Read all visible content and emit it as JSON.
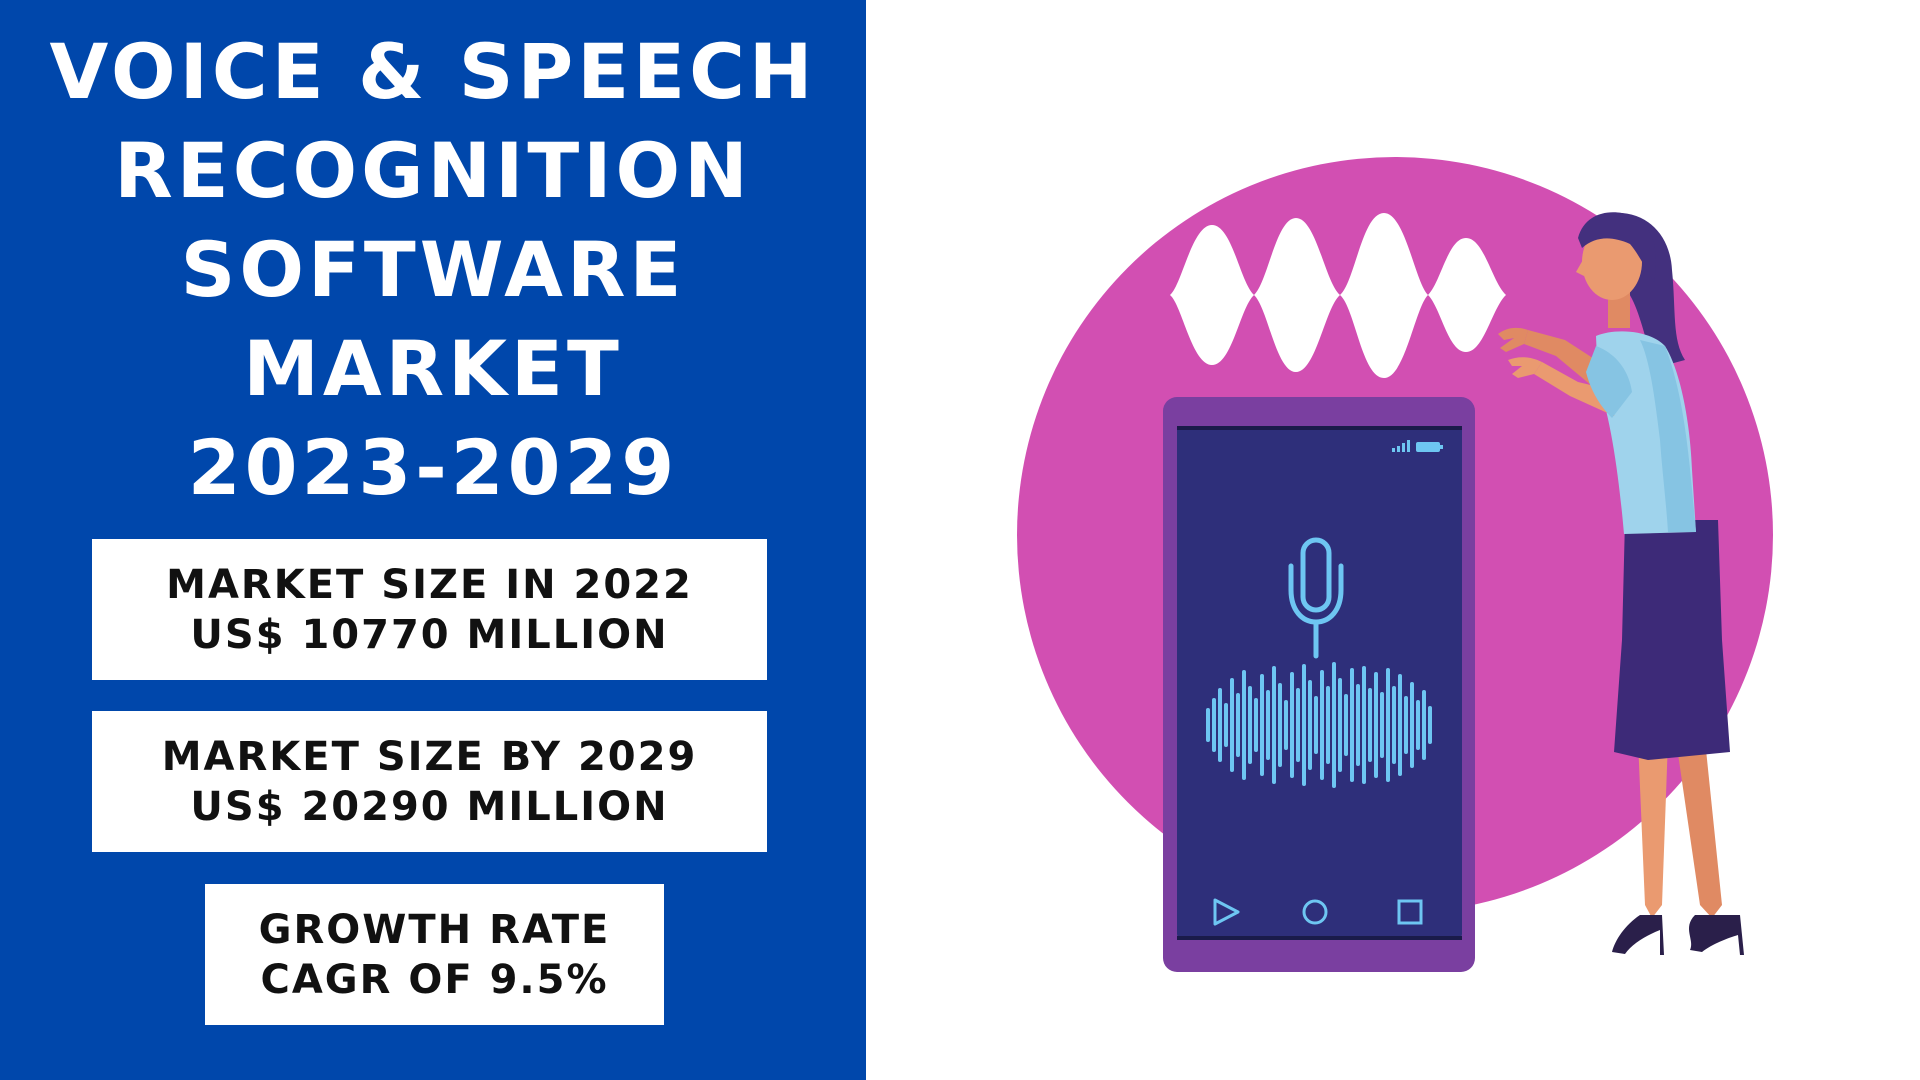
{
  "title": {
    "line1": "VOICE & SPEECH",
    "line2": "RECOGNITION",
    "line3": "SOFTWARE",
    "line4": "MARKET",
    "line5": "2023-2029"
  },
  "stats": {
    "market_2022": {
      "label": "MARKET SIZE IN 2022",
      "value": "US$ 10770 MILLION"
    },
    "market_2029": {
      "label": "MARKET SIZE BY 2029",
      "value": "US$ 20290 MILLION"
    },
    "growth": {
      "label": "GROWTH RATE",
      "value": "CAGR OF 9.5%"
    }
  },
  "colors": {
    "panel_blue": "#0047ab",
    "circle_magenta": "#d24fb2",
    "phone_frame": "#7a3fa0",
    "phone_screen": "#2e2f7a",
    "wave_light": "#6ec6f2",
    "skirt_purple": "#3d2a78",
    "hair_purple": "#43307e"
  },
  "icons": {
    "microphone": "microphone-icon",
    "play": "play-icon",
    "home": "home-circle-icon",
    "recent": "square-icon",
    "signal": "signal-icon",
    "battery": "battery-icon"
  }
}
